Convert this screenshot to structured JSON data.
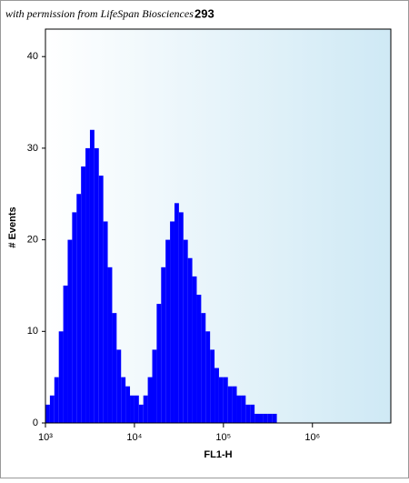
{
  "chart_data": {
    "type": "histogram",
    "title": "293",
    "annotation": "with permission from LifeSpan Biosciences",
    "xlabel": "FL1-H",
    "ylabel": "# Events",
    "xscale": "log",
    "color": "#0000ff",
    "xlim": [
      1000,
      7600000
    ],
    "ylim": [
      0,
      43
    ],
    "xticks": [
      {
        "value": 1000,
        "label": "10³"
      },
      {
        "value": 10000,
        "label": "10⁴"
      },
      {
        "value": 100000,
        "label": "10⁵"
      },
      {
        "value": 1000000,
        "label": "10⁶"
      }
    ],
    "yticks": [
      0,
      10,
      20,
      30,
      40
    ],
    "bins": [
      1000,
      1122,
      1259,
      1413,
      1585,
      1778,
      1995,
      2239,
      2512,
      2818,
      3162,
      3548,
      3981,
      4467,
      5012,
      5623,
      6310,
      7079,
      7943,
      8913,
      10000,
      11220,
      12589,
      14125,
      15849,
      17783,
      19953,
      22387,
      25119,
      28184,
      31623,
      35481,
      39811,
      44668,
      50119,
      56234,
      63096,
      70795,
      79433,
      89125,
      100000,
      112202,
      125893,
      141254,
      158489,
      177828,
      199526,
      223872,
      251189,
      281838,
      316228,
      354813,
      398107,
      446684,
      501187,
      562341,
      630957,
      707946,
      794328,
      891251,
      1000000,
      1122018,
      1258925,
      1412538,
      1584893,
      1778279,
      1995262,
      2238721,
      2511886,
      2818383,
      3162278,
      3548134,
      3981072,
      4466836,
      5011872,
      5623413,
      6309573,
      7079458
    ],
    "values": [
      2,
      3,
      5,
      10,
      15,
      20,
      23,
      25,
      28,
      30,
      32,
      30,
      27,
      22,
      17,
      12,
      8,
      5,
      4,
      3,
      3,
      2,
      3,
      5,
      8,
      13,
      17,
      20,
      22,
      24,
      23,
      20,
      18,
      16,
      14,
      12,
      10,
      8,
      6,
      5,
      5,
      4,
      4,
      3,
      3,
      2,
      2,
      1,
      1,
      1,
      1,
      1,
      0,
      0,
      0,
      0,
      0,
      0,
      0,
      0,
      0,
      0,
      0,
      0,
      0,
      0,
      0,
      0,
      0,
      0,
      0,
      0,
      0,
      0,
      0,
      0,
      0
    ]
  }
}
